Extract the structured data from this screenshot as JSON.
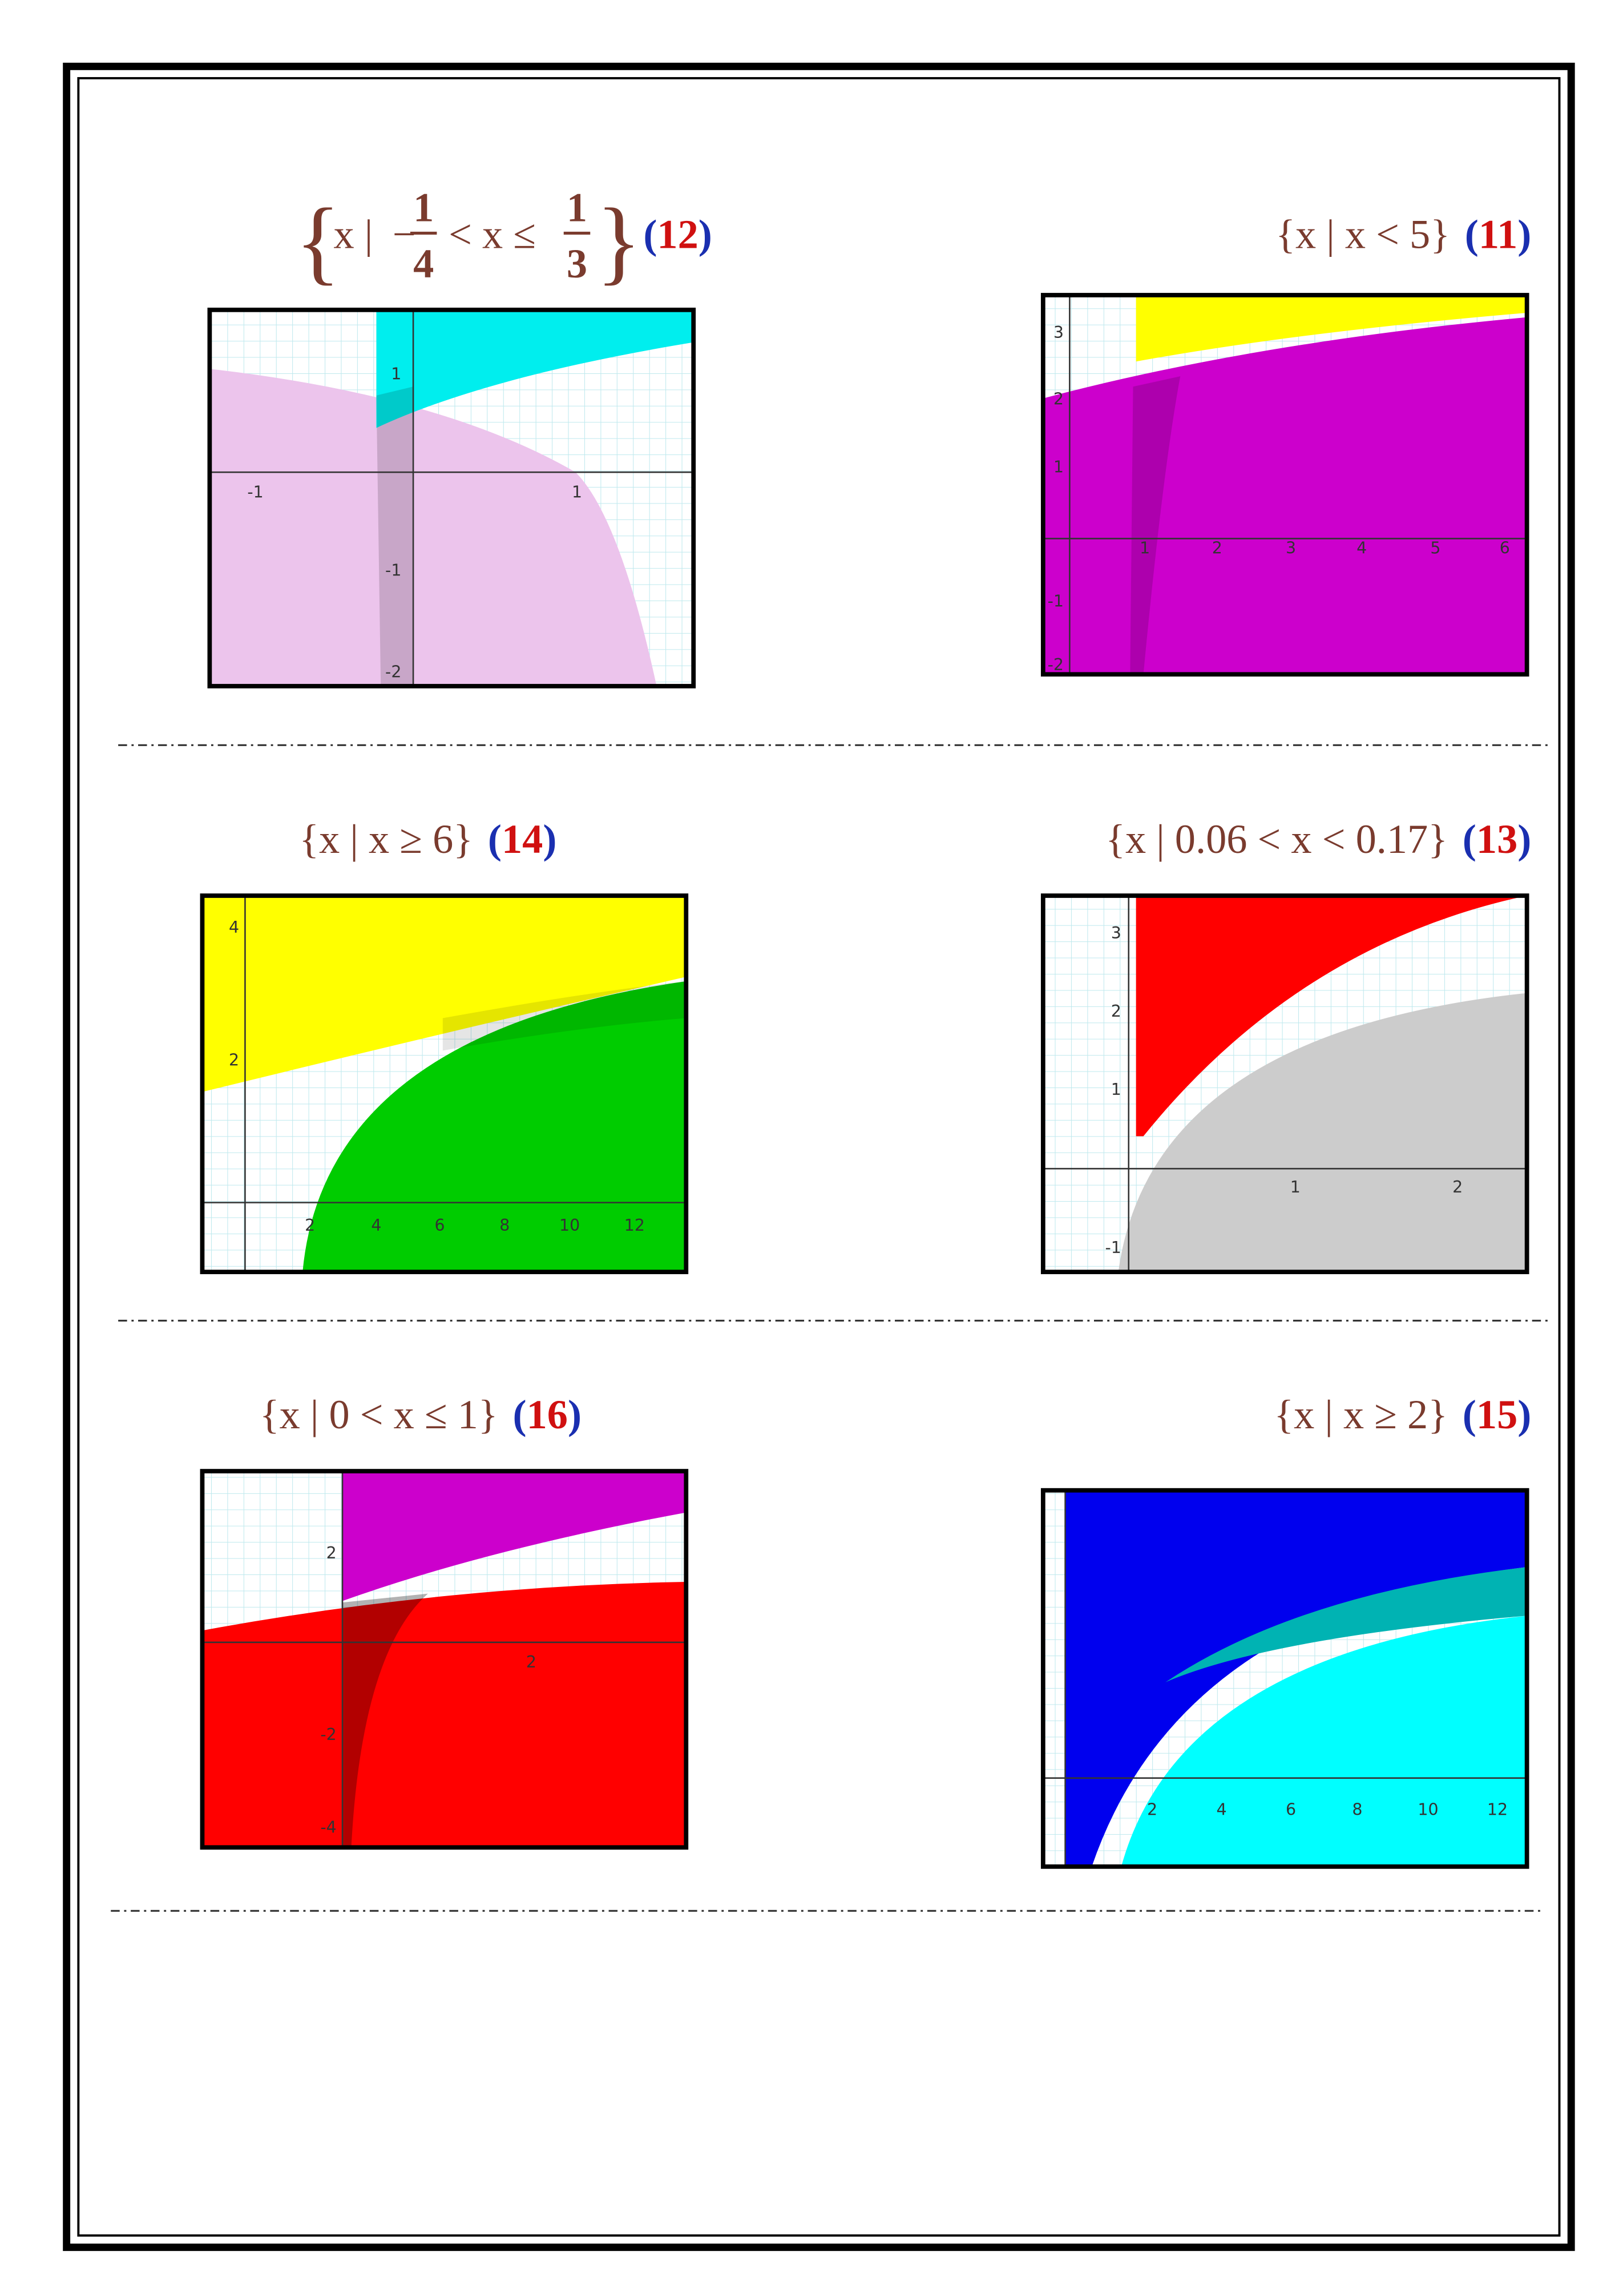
{
  "problems": [
    {
      "number": [
        "(",
        "12",
        ")"
      ],
      "answer": {
        "open": "{",
        "var": "x |",
        "sign": "−",
        "frac1": {
          "num": "1",
          "den": "4"
        },
        "relation": "< x ≤",
        "frac2": {
          "num": "1",
          "den": "3"
        },
        "close": "}"
      },
      "ticks": [
        "-1",
        "1",
        "1",
        "-1",
        "-2"
      ]
    },
    {
      "number": [
        "(",
        "11",
        ")"
      ],
      "answer": "{x | x < 5}",
      "ticks": [
        "3",
        "2",
        "1",
        "-1",
        "-2",
        "1",
        "2",
        "3",
        "4",
        "5",
        "6"
      ]
    },
    {
      "number": [
        "(",
        "14",
        ")"
      ],
      "answer": "{x | x ≥ 6}",
      "ticks": [
        "4",
        "2",
        "2",
        "4",
        "6",
        "8",
        "10",
        "12"
      ]
    },
    {
      "number": [
        "(",
        "13",
        ")"
      ],
      "answer": "{x | 0.06 < x < 0.17}",
      "ticks": [
        "3",
        "2",
        "1",
        "-1",
        "1",
        "2"
      ]
    },
    {
      "number": [
        "(",
        "16",
        ")"
      ],
      "answer": "{x | 0 < x ≤ 1}",
      "ticks": [
        "2",
        "-2",
        "-4",
        "2"
      ]
    },
    {
      "number": [
        "(",
        "15",
        ")"
      ],
      "answer": "{x | x ≥ 2}",
      "ticks": [
        "2",
        "4",
        "6",
        "8",
        "10",
        "12"
      ]
    }
  ]
}
